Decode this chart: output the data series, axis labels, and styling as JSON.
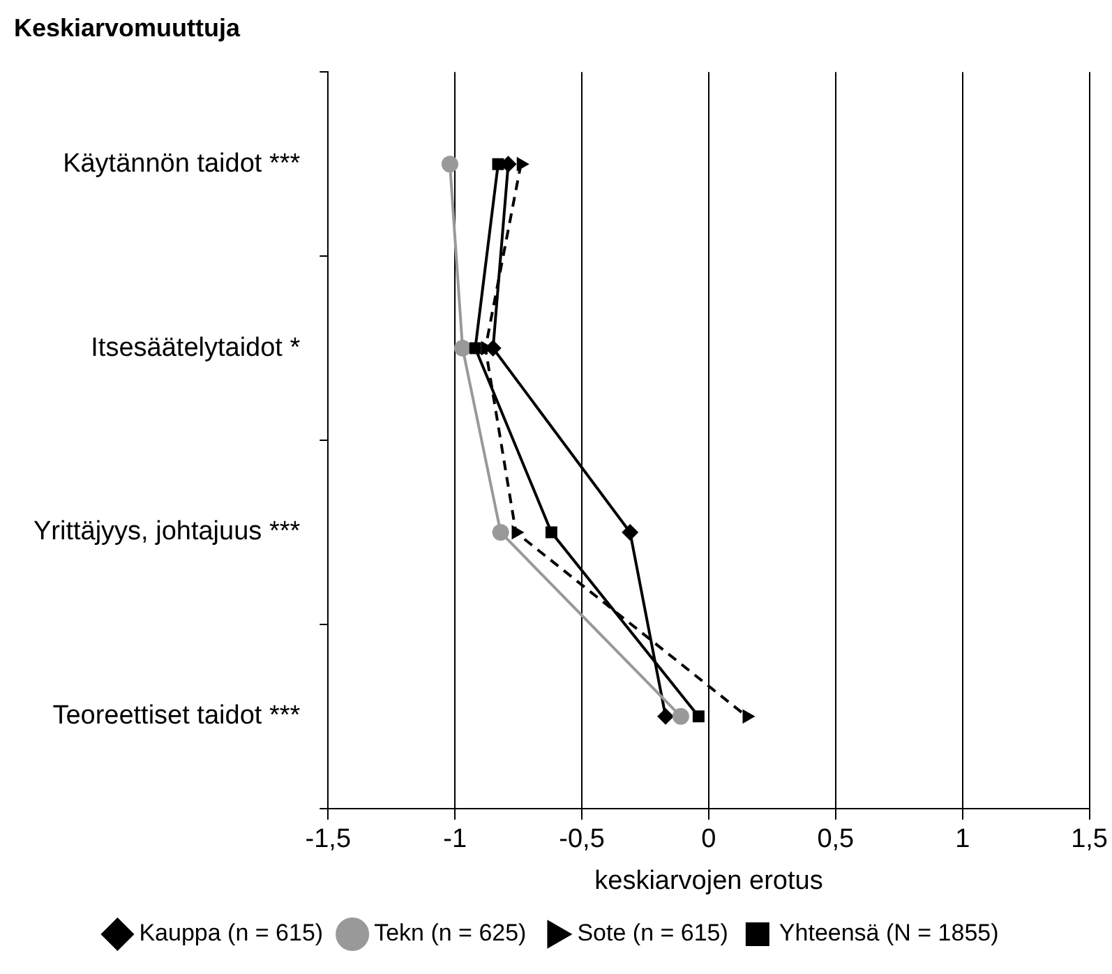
{
  "chart_data": {
    "type": "line",
    "orientation": "horizontal",
    "ylabel": "Keskiarvomuuttuja",
    "xlabel": "keskiarvojen erotus",
    "categories": [
      "Käytännön taidot ***",
      "Itsesäätelytaidot *",
      "Yrittäjyys, johtajuus ***",
      "Teoreettiset taidot ***"
    ],
    "xlim": [
      -1.5,
      1.5
    ],
    "xticks": [
      {
        "value": -1.5,
        "label": "-1,5"
      },
      {
        "value": -1,
        "label": "-1"
      },
      {
        "value": -0.5,
        "label": "-0,5"
      },
      {
        "value": 0,
        "label": "0"
      },
      {
        "value": 0.5,
        "label": "0,5"
      },
      {
        "value": 1,
        "label": "1"
      },
      {
        "value": 1.5,
        "label": "1,5"
      }
    ],
    "grid": "x",
    "legend": "bottom",
    "series": [
      {
        "name": "Kauppa (n = 615)",
        "color": "#000000",
        "marker": "diamond",
        "line_style": "solid",
        "values": [
          -0.79,
          -0.85,
          -0.31,
          -0.17
        ]
      },
      {
        "name": "Tekn (n = 625)",
        "color": "#999999",
        "marker": "circle",
        "line_style": "solid",
        "values": [
          -1.02,
          -0.97,
          -0.82,
          -0.11
        ]
      },
      {
        "name": "Sote (n = 615)",
        "color": "#000000",
        "marker": "triangle",
        "line_style": "dashed",
        "values": [
          -0.74,
          -0.88,
          -0.76,
          0.15
        ]
      },
      {
        "name": "Yhteensä (N = 1855)",
        "color": "#000000",
        "marker": "square",
        "line_style": "solid",
        "values": [
          -0.83,
          -0.92,
          -0.62,
          -0.04
        ]
      }
    ]
  }
}
